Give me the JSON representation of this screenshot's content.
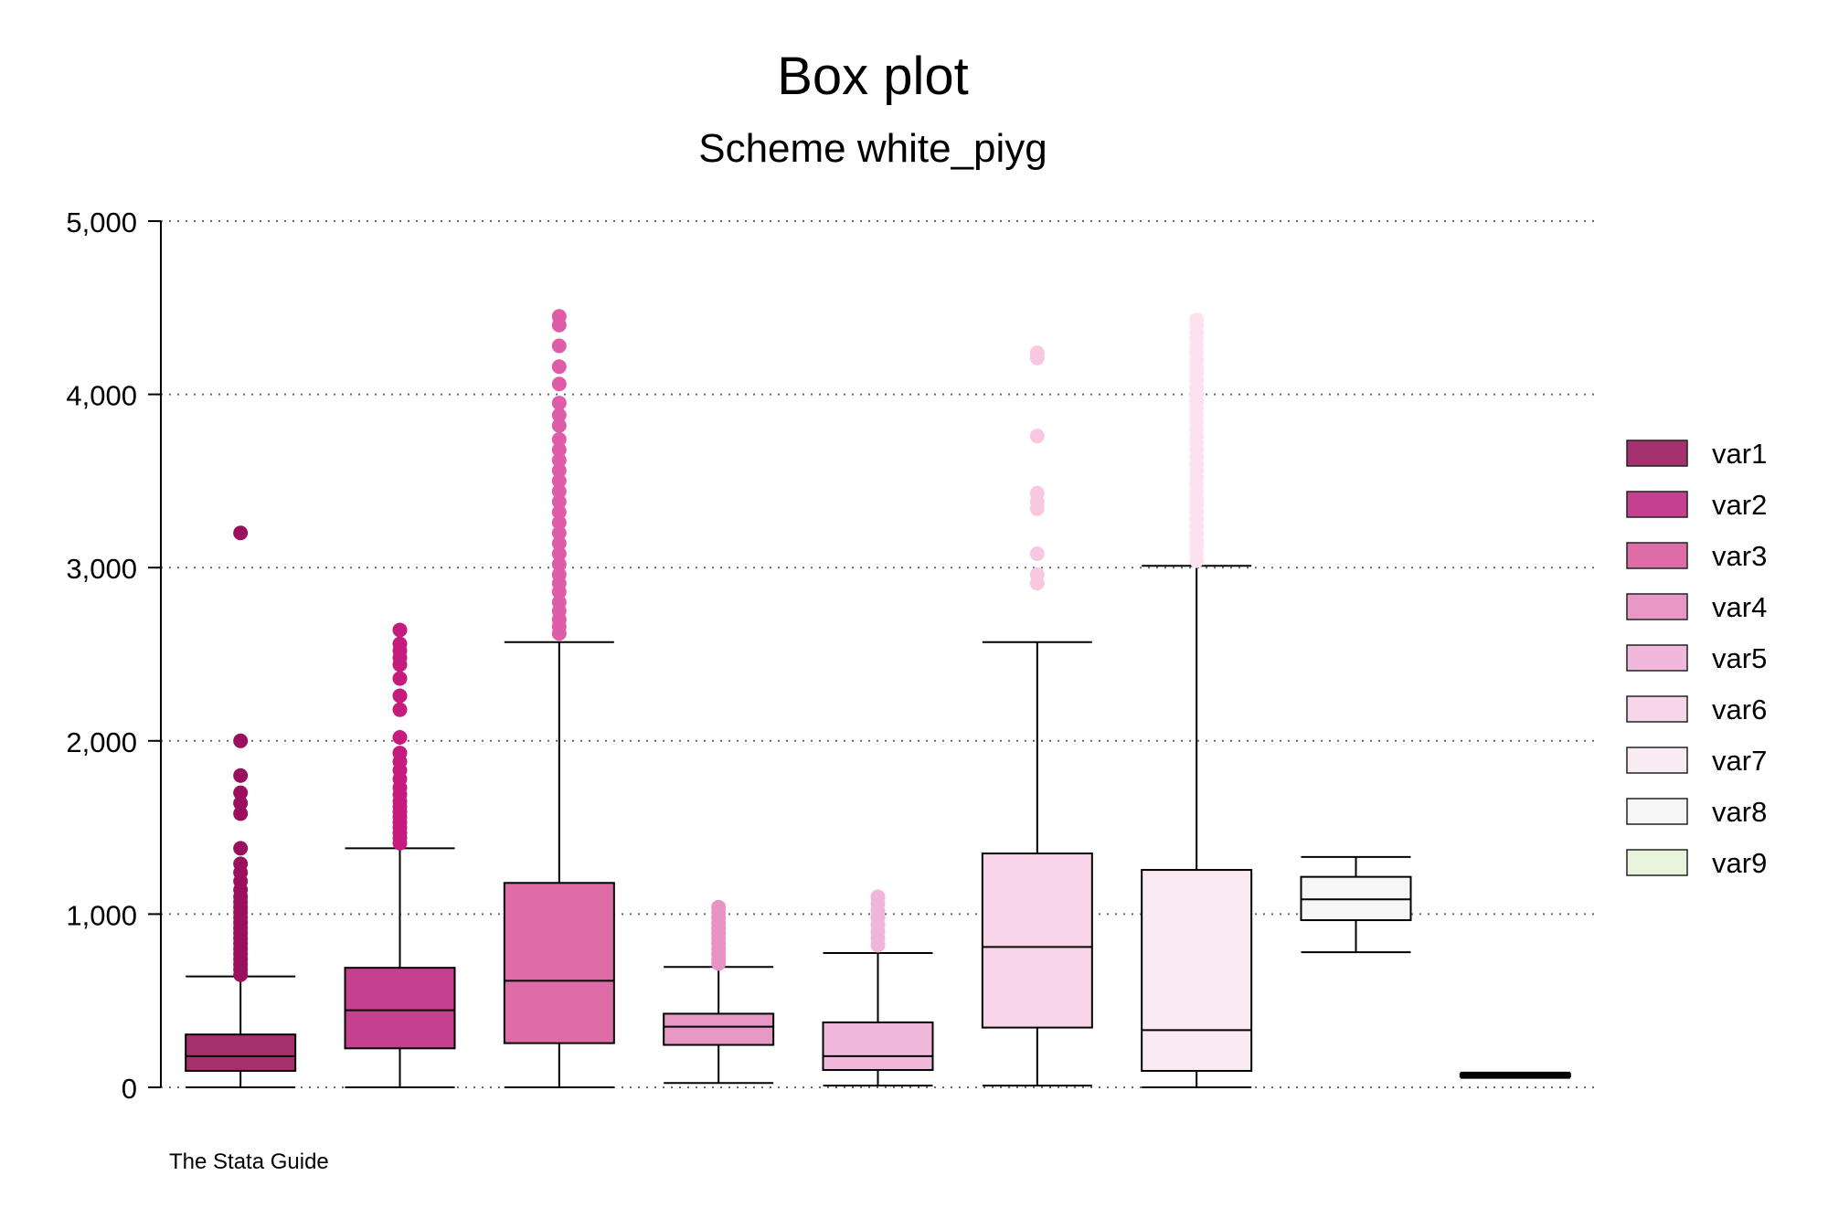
{
  "chart_data": {
    "type": "boxplot",
    "title": "Box plot",
    "subtitle": "Scheme white_piyg",
    "note": "The Stata Guide",
    "ylim": [
      0,
      5000
    ],
    "yticks": [
      0,
      1000,
      2000,
      3000,
      4000,
      5000
    ],
    "ytick_labels": [
      "0",
      "1,000",
      "2,000",
      "3,000",
      "4,000",
      "5,000"
    ],
    "grid": true,
    "legend_position": "right",
    "series": [
      {
        "name": "var1",
        "color": "#a4306e",
        "outlier_color": "#9a0f5e",
        "whisker_low": 0,
        "q1": 95,
        "median": 180,
        "q3": 305,
        "whisker_high": 640,
        "outliers": [
          650,
          680,
          710,
          740,
          770,
          800,
          830,
          860,
          890,
          920,
          950,
          980,
          1010,
          1040,
          1070,
          1100,
          1140,
          1190,
          1240,
          1290,
          1380,
          1580,
          1640,
          1700,
          1800,
          2000,
          3200
        ]
      },
      {
        "name": "var2",
        "color": "#c5418f",
        "outlier_color": "#c51b7d",
        "whisker_low": 0,
        "q1": 225,
        "median": 445,
        "q3": 690,
        "whisker_high": 1380,
        "outliers": [
          1410,
          1440,
          1470,
          1500,
          1530,
          1560,
          1590,
          1620,
          1650,
          1690,
          1730,
          1780,
          1830,
          1880,
          1930,
          2020,
          2180,
          2260,
          2360,
          2440,
          2480,
          2520,
          2560,
          2640
        ]
      },
      {
        "name": "var3",
        "color": "#dd6ca7",
        "outlier_color": "#de5ca8",
        "whisker_low": 0,
        "q1": 255,
        "median": 615,
        "q3": 1180,
        "whisker_high": 2570,
        "outliers": [
          2620,
          2660,
          2700,
          2750,
          2800,
          2860,
          2910,
          2960,
          3020,
          3080,
          3140,
          3200,
          3260,
          3320,
          3380,
          3440,
          3500,
          3560,
          3620,
          3680,
          3740,
          3820,
          3880,
          3950,
          4060,
          4160,
          4280,
          4400,
          4450
        ]
      },
      {
        "name": "var4",
        "color": "#e898c5",
        "outlier_color": "#e993c4",
        "whisker_low": 25,
        "q1": 245,
        "median": 350,
        "q3": 425,
        "whisker_high": 695,
        "outliers": [
          715,
          740,
          770,
          800,
          830,
          860,
          890,
          920,
          950,
          980,
          1010,
          1040
        ]
      },
      {
        "name": "var5",
        "color": "#f0b8db",
        "outlier_color": "#f0b6da",
        "whisker_low": 10,
        "q1": 100,
        "median": 180,
        "q3": 375,
        "whisker_high": 775,
        "outliers": [
          820,
          860,
          900,
          940,
          980,
          1020,
          1060,
          1100
        ]
      },
      {
        "name": "var6",
        "color": "#f8d4e8",
        "outlier_color": "#f8c8e2",
        "whisker_low": 10,
        "q1": 345,
        "median": 810,
        "q3": 1350,
        "whisker_high": 2570,
        "outliers": [
          2910,
          2960,
          3080,
          3340,
          3380,
          3430,
          3760,
          4210,
          4240
        ]
      },
      {
        "name": "var7",
        "color": "#faeaf2",
        "outlier_color": "#fce2ef",
        "whisker_low": 0,
        "q1": 95,
        "median": 330,
        "q3": 1255,
        "whisker_high": 3010,
        "outliers": [
          3040,
          3080,
          3120,
          3160,
          3200,
          3240,
          3280,
          3320,
          3360,
          3400,
          3440,
          3480,
          3520,
          3560,
          3600,
          3640,
          3680,
          3720,
          3760,
          3800,
          3840,
          3880,
          3920,
          3960,
          4000,
          4040,
          4080,
          4120,
          4160,
          4200,
          4240,
          4280,
          4320,
          4360,
          4400,
          4430
        ]
      },
      {
        "name": "var8",
        "color": "#f6f6f6",
        "outlier_color": "#f0f0f0",
        "whisker_low": 780,
        "q1": 965,
        "median": 1085,
        "q3": 1215,
        "whisker_high": 1330,
        "outliers": []
      },
      {
        "name": "var9",
        "color": "#e8f4dc",
        "outlier_color": "#e8f4dc",
        "whisker_low": 55,
        "q1": 62,
        "median": 70,
        "q3": 78,
        "whisker_high": 85,
        "outliers": []
      }
    ]
  }
}
